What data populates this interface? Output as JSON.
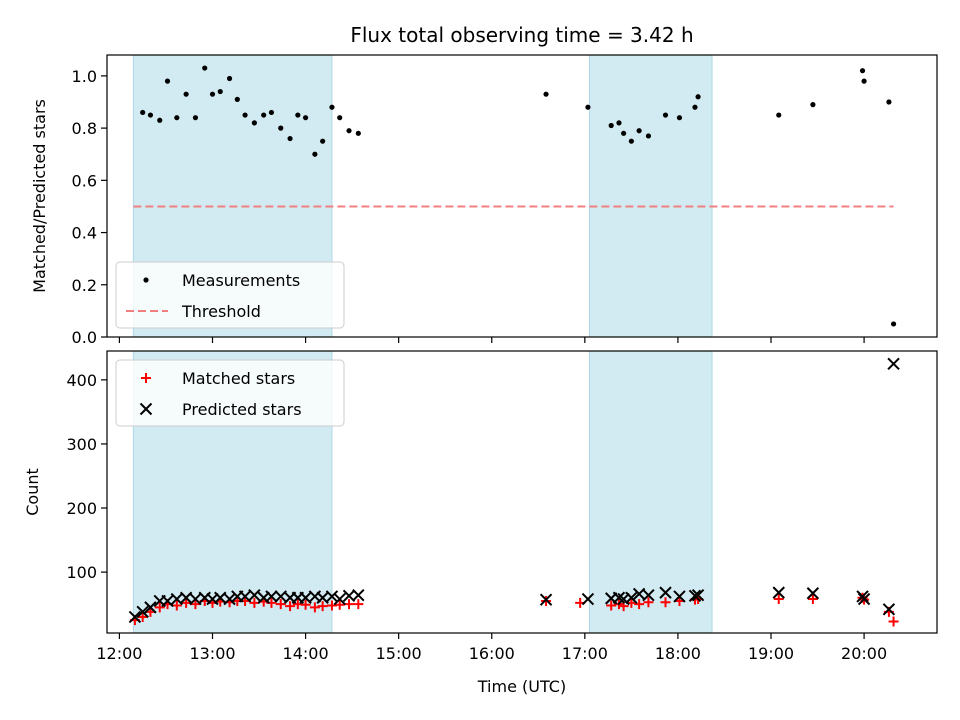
{
  "chart_data": [
    {
      "type": "scatter",
      "title": "Flux total observing time = 3.42 h",
      "xlabel": "",
      "ylabel": "Matched/Predicted stars",
      "ylim": [
        0,
        1.08
      ],
      "yticks": [
        "0.0",
        "0.2",
        "0.4",
        "0.6",
        "0.8",
        "1.0"
      ],
      "ytick_values": [
        0,
        0.2,
        0.4,
        0.6,
        0.8,
        1.0
      ],
      "xlim": [
        "11:52",
        "20:47"
      ],
      "shaded_intervals": [
        [
          "12:09",
          "14:17"
        ],
        [
          "17:03",
          "18:22"
        ]
      ],
      "shade_color": "#add8e6",
      "legend_position": "lower left",
      "series": [
        {
          "name": "Measurements",
          "kind": "scatter",
          "marker": "dot",
          "color": "#000000",
          "points": [
            [
              "12:15",
              0.86
            ],
            [
              "12:20",
              0.85
            ],
            [
              "12:26",
              0.83
            ],
            [
              "12:31",
              0.98
            ],
            [
              "12:37",
              0.84
            ],
            [
              "12:43",
              0.93
            ],
            [
              "12:49",
              0.84
            ],
            [
              "12:55",
              1.03
            ],
            [
              "13:00",
              0.93
            ],
            [
              "13:05",
              0.94
            ],
            [
              "13:11",
              0.99
            ],
            [
              "13:16",
              0.91
            ],
            [
              "13:21",
              0.85
            ],
            [
              "13:27",
              0.82
            ],
            [
              "13:33",
              0.85
            ],
            [
              "13:38",
              0.86
            ],
            [
              "13:44",
              0.8
            ],
            [
              "13:50",
              0.76
            ],
            [
              "13:55",
              0.85
            ],
            [
              "14:00",
              0.84
            ],
            [
              "14:06",
              0.7
            ],
            [
              "14:11",
              0.75
            ],
            [
              "14:17",
              0.88
            ],
            [
              "14:22",
              0.84
            ],
            [
              "14:28",
              0.79
            ],
            [
              "14:34",
              0.78
            ],
            [
              "16:35",
              0.93
            ],
            [
              "17:02",
              0.88
            ],
            [
              "17:17",
              0.81
            ],
            [
              "17:22",
              0.82
            ],
            [
              "17:25",
              0.78
            ],
            [
              "17:30",
              0.75
            ],
            [
              "17:35",
              0.79
            ],
            [
              "17:41",
              0.77
            ],
            [
              "17:52",
              0.85
            ],
            [
              "18:01",
              0.84
            ],
            [
              "18:11",
              0.88
            ],
            [
              "18:13",
              0.92
            ],
            [
              "19:05",
              0.85
            ],
            [
              "19:27",
              0.89
            ],
            [
              "19:59",
              1.02
            ],
            [
              "20:00",
              0.98
            ],
            [
              "20:16",
              0.9
            ],
            [
              "20:19",
              0.05
            ]
          ]
        },
        {
          "name": "Threshold",
          "kind": "line",
          "style": "dashed",
          "color": "#f08080",
          "points": [
            [
              "12:09",
              0.5
            ],
            [
              "20:19",
              0.5
            ]
          ]
        }
      ]
    },
    {
      "type": "scatter",
      "title": "",
      "xlabel": "Time (UTC)",
      "ylabel": "Count",
      "ylim": [
        5,
        445
      ],
      "yticks": [
        "100",
        "200",
        "300",
        "400"
      ],
      "ytick_values": [
        100,
        200,
        300,
        400
      ],
      "xlim": [
        "11:52",
        "20:47"
      ],
      "xticks": [
        "12:00",
        "13:00",
        "14:00",
        "15:00",
        "16:00",
        "17:00",
        "18:00",
        "19:00",
        "20:00"
      ],
      "shaded_intervals": [
        [
          "12:09",
          "14:17"
        ],
        [
          "17:03",
          "18:22"
        ]
      ],
      "shade_color": "#add8e6",
      "legend_position": "upper left",
      "series": [
        {
          "name": "Matched stars",
          "kind": "scatter",
          "marker": "plus",
          "color": "#ff0000",
          "points": [
            [
              "12:10",
              25
            ],
            [
              "12:15",
              30
            ],
            [
              "12:20",
              38
            ],
            [
              "12:26",
              45
            ],
            [
              "12:31",
              50
            ],
            [
              "12:37",
              48
            ],
            [
              "12:43",
              52
            ],
            [
              "12:49",
              50
            ],
            [
              "12:55",
              55
            ],
            [
              "13:00",
              52
            ],
            [
              "13:05",
              54
            ],
            [
              "13:11",
              53
            ],
            [
              "13:16",
              55
            ],
            [
              "13:21",
              55
            ],
            [
              "13:27",
              52
            ],
            [
              "13:33",
              54
            ],
            [
              "13:38",
              52
            ],
            [
              "13:44",
              50
            ],
            [
              "13:50",
              47
            ],
            [
              "13:55",
              50
            ],
            [
              "14:00",
              49
            ],
            [
              "14:06",
              45
            ],
            [
              "14:11",
              47
            ],
            [
              "14:17",
              48
            ],
            [
              "14:22",
              49
            ],
            [
              "14:28",
              50
            ],
            [
              "14:34",
              50
            ],
            [
              "16:35",
              55
            ],
            [
              "16:57",
              52
            ],
            [
              "17:17",
              48
            ],
            [
              "17:22",
              50
            ],
            [
              "17:25",
              47
            ],
            [
              "17:30",
              52
            ],
            [
              "17:35",
              50
            ],
            [
              "17:41",
              53
            ],
            [
              "17:52",
              53
            ],
            [
              "18:01",
              55
            ],
            [
              "18:11",
              57
            ],
            [
              "18:13",
              58
            ],
            [
              "19:05",
              58
            ],
            [
              "19:27",
              58
            ],
            [
              "19:59",
              60
            ],
            [
              "20:00",
              57
            ],
            [
              "20:16",
              38
            ],
            [
              "20:19",
              23
            ]
          ]
        },
        {
          "name": "Predicted stars",
          "kind": "scatter",
          "marker": "x",
          "color": "#000000",
          "points": [
            [
              "12:10",
              30
            ],
            [
              "12:15",
              38
            ],
            [
              "12:20",
              45
            ],
            [
              "12:26",
              55
            ],
            [
              "12:31",
              55
            ],
            [
              "12:37",
              58
            ],
            [
              "12:43",
              60
            ],
            [
              "12:49",
              58
            ],
            [
              "12:55",
              60
            ],
            [
              "13:00",
              58
            ],
            [
              "13:05",
              60
            ],
            [
              "13:11",
              58
            ],
            [
              "13:16",
              62
            ],
            [
              "13:21",
              62
            ],
            [
              "13:27",
              64
            ],
            [
              "13:33",
              60
            ],
            [
              "13:38",
              62
            ],
            [
              "13:44",
              62
            ],
            [
              "13:50",
              60
            ],
            [
              "13:55",
              60
            ],
            [
              "14:00",
              60
            ],
            [
              "14:06",
              62
            ],
            [
              "14:11",
              60
            ],
            [
              "14:17",
              62
            ],
            [
              "14:22",
              58
            ],
            [
              "14:28",
              63
            ],
            [
              "14:34",
              64
            ],
            [
              "16:35",
              57
            ],
            [
              "17:02",
              58
            ],
            [
              "17:17",
              59
            ],
            [
              "17:22",
              60
            ],
            [
              "17:25",
              58
            ],
            [
              "17:30",
              60
            ],
            [
              "17:35",
              66
            ],
            [
              "17:41",
              64
            ],
            [
              "17:52",
              68
            ],
            [
              "18:01",
              62
            ],
            [
              "18:11",
              63
            ],
            [
              "18:13",
              64
            ],
            [
              "19:05",
              68
            ],
            [
              "19:27",
              67
            ],
            [
              "19:59",
              62
            ],
            [
              "20:00",
              58
            ],
            [
              "20:16",
              42
            ],
            [
              "20:19",
              425
            ]
          ]
        }
      ]
    }
  ]
}
